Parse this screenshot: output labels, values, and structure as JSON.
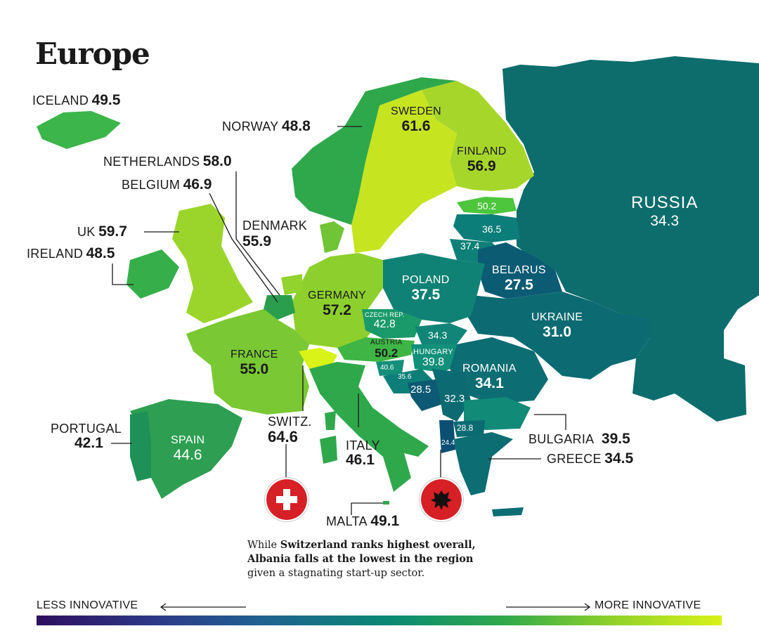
{
  "title": "Europe",
  "countries": {
    "iceland": {
      "name": "ICELAND",
      "value": "49.5"
    },
    "norway": {
      "name": "NORWAY",
      "value": "48.8"
    },
    "sweden": {
      "name": "SWEDEN",
      "value": "61.6"
    },
    "finland": {
      "name": "FINLAND",
      "value": "56.9"
    },
    "russia": {
      "name": "RUSSIA",
      "value": "34.3"
    },
    "netherlands": {
      "name": "NETHERLANDS",
      "value": "58.0"
    },
    "belgium": {
      "name": "BELGIUM",
      "value": "46.9"
    },
    "uk": {
      "name": "UK",
      "value": "59.7"
    },
    "ireland": {
      "name": "IRELAND",
      "value": "48.5"
    },
    "denmark": {
      "name": "DENMARK",
      "value": "55.9"
    },
    "germany": {
      "name": "GERMANY",
      "value": "57.2"
    },
    "poland": {
      "name": "POLAND",
      "value": "37.5"
    },
    "belarus": {
      "name": "BELARUS",
      "value": "27.5"
    },
    "ukraine": {
      "name": "UKRAINE",
      "value": "31.0"
    },
    "czech": {
      "name": "CZECH REP.",
      "value": "42.8"
    },
    "austria": {
      "name": "AUSTRIA",
      "value": "50.2"
    },
    "hungary": {
      "name": "HUNGARY",
      "value": "39.8"
    },
    "romania": {
      "name": "ROMANIA",
      "value": "34.1"
    },
    "france": {
      "name": "FRANCE",
      "value": "55.0"
    },
    "switzerland": {
      "name": "SWITZ.",
      "value": "64.6"
    },
    "italy": {
      "name": "ITALY",
      "value": "46.1"
    },
    "spain": {
      "name": "SPAIN",
      "value": "44.6"
    },
    "portugal": {
      "name": "PORTUGAL",
      "value": "42.1"
    },
    "malta": {
      "name": "MALTA",
      "value": "49.1"
    },
    "bulgaria": {
      "name": "BULGARIA",
      "value": "39.5"
    },
    "greece": {
      "name": "GREECE",
      "value": "34.5"
    }
  },
  "unlabeled_values": {
    "estonia": "50.2",
    "latvia": "36.5",
    "lithuania": "37.4",
    "slovakia": "34.3",
    "slovenia": "40.6",
    "croatia": "35.6",
    "bosnia": "28.5",
    "serbia": "32.3",
    "north_macedonia": "28.8",
    "albania": "24.4"
  },
  "note": {
    "part1": "While ",
    "bold1": "Switzerland ranks highest overall,",
    "bold2": "Albania falls at the lowest in the region",
    "line3": "given a stagnating start-up sector."
  },
  "legend": {
    "less": "LESS INNOVATIVE",
    "more": "MORE INNOVATIVE"
  },
  "icons": {
    "switzerland_badge": "swiss-flag-icon",
    "albania_badge": "albanian-flag-icon"
  },
  "colors": {
    "scale_low": "#2e0f5e",
    "scale_mid": "#0b8a73",
    "scale_high": "#d9f218",
    "russia": "#0d6d6d",
    "swiss_red": "#d71f26",
    "albania_red": "#d71f26"
  }
}
